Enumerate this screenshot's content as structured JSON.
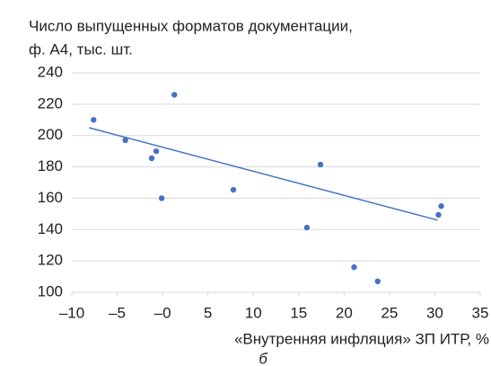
{
  "chart_data": {
    "type": "scatter",
    "title": [
      "Число выпущенных форматов документации,",
      "ф. А4, тыс. шт."
    ],
    "xlabel": "«Внутренняя инфляция» ЗП ИТР, %",
    "caption": "б",
    "color": "#4472c4",
    "x": [
      -7.6,
      -4.1,
      -0.7,
      -1.2,
      -0.1,
      1.3,
      7.8,
      17.4,
      15.9,
      21.1,
      23.7,
      30.4,
      30.7
    ],
    "values": [
      210,
      197,
      190,
      185.5,
      160,
      226,
      165.4,
      181.5,
      141.3,
      116,
      107,
      149.4,
      155
    ],
    "trendline": {
      "x": [
        -8.1,
        30.3
      ],
      "y": [
        205,
        146
      ]
    },
    "xlim": [
      -10,
      35
    ],
    "ylim": [
      100,
      240
    ],
    "xticks": [
      {
        "value": -10,
        "label": "–10"
      },
      {
        "value": -5,
        "label": "–5"
      },
      {
        "value": 0,
        "label": "–0"
      },
      5,
      10,
      15,
      20,
      25,
      30,
      35
    ],
    "yticks": [
      100,
      120,
      140,
      160,
      180,
      200,
      220,
      240
    ],
    "grid": true
  }
}
